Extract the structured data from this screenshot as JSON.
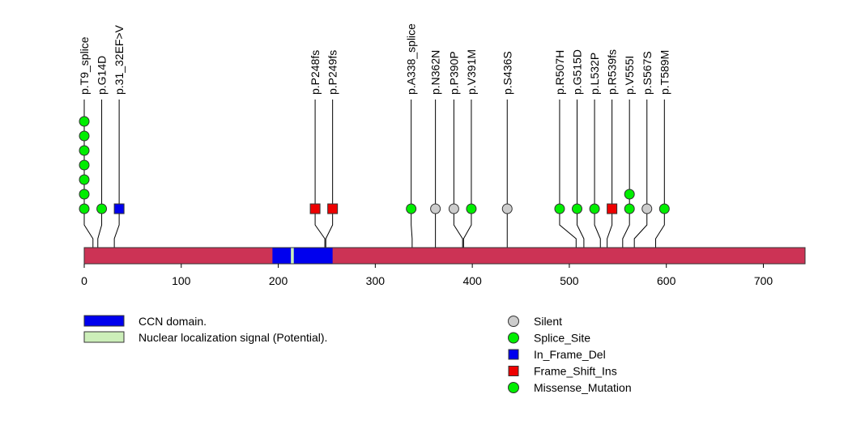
{
  "chart_data": {
    "type": "lollipop",
    "title": "",
    "protein_length": 743,
    "axis": {
      "xlim": [
        0,
        743
      ],
      "ticks": [
        0,
        100,
        200,
        300,
        400,
        500,
        600,
        700
      ],
      "tick_labels": [
        "0",
        "100",
        "200",
        "300",
        "400",
        "500",
        "600",
        "700"
      ]
    },
    "domains": [
      {
        "name": "CCN domain.",
        "start": 194,
        "end": 256,
        "color": "#0000ee"
      },
      {
        "name": "Nuclear localization signal (Potential).",
        "start": 213,
        "end": 216,
        "color": "#cceeb9"
      }
    ],
    "backbone_color": "#cc3355",
    "mutations": [
      {
        "label": "p.T9_splice",
        "pos": 9,
        "display_pos": 0,
        "count": 7,
        "type": "Splice_Site"
      },
      {
        "label": "p.G14D",
        "pos": 14,
        "display_pos": 18,
        "count": 1,
        "type": "Missense_Mutation"
      },
      {
        "label": "p.31_32EF>V",
        "pos": 31,
        "display_pos": 36,
        "count": 1,
        "type": "In_Frame_Del"
      },
      {
        "label": "p.P248fs",
        "pos": 248,
        "display_pos": 238,
        "count": 1,
        "type": "Frame_Shift_Ins"
      },
      {
        "label": "p.P249fs",
        "pos": 249,
        "display_pos": 256,
        "count": 1,
        "type": "Frame_Shift_Ins"
      },
      {
        "label": "p.A338_splice",
        "pos": 338,
        "display_pos": 337,
        "count": 1,
        "type": "Splice_Site"
      },
      {
        "label": "p.N362N",
        "pos": 362,
        "display_pos": 362,
        "count": 1,
        "type": "Silent"
      },
      {
        "label": "p.P390P",
        "pos": 390,
        "display_pos": 381,
        "count": 1,
        "type": "Silent"
      },
      {
        "label": "p.V391M",
        "pos": 391,
        "display_pos": 399,
        "count": 1,
        "type": "Missense_Mutation"
      },
      {
        "label": "p.S436S",
        "pos": 436,
        "display_pos": 436,
        "count": 1,
        "type": "Silent"
      },
      {
        "label": "p.R507H",
        "pos": 507,
        "display_pos": 490,
        "count": 1,
        "type": "Missense_Mutation"
      },
      {
        "label": "p.G515D",
        "pos": 515,
        "display_pos": 508,
        "count": 1,
        "type": "Missense_Mutation"
      },
      {
        "label": "p.L532P",
        "pos": 532,
        "display_pos": 526,
        "count": 1,
        "type": "Missense_Mutation"
      },
      {
        "label": "p.R539fs",
        "pos": 539,
        "display_pos": 544,
        "count": 1,
        "type": "Frame_Shift_Ins"
      },
      {
        "label": "p.V555I",
        "pos": 555,
        "display_pos": 562,
        "count": 2,
        "type": "Missense_Mutation"
      },
      {
        "label": "p.S567S",
        "pos": 567,
        "display_pos": 580,
        "count": 1,
        "type": "Silent"
      },
      {
        "label": "p.T589M",
        "pos": 589,
        "display_pos": 598,
        "count": 1,
        "type": "Missense_Mutation"
      }
    ],
    "mutation_types": {
      "Silent": {
        "color": "#cccccc",
        "shape": "circle"
      },
      "Splice_Site": {
        "color": "#00ee00",
        "shape": "circle"
      },
      "In_Frame_Del": {
        "color": "#0000ee",
        "shape": "square"
      },
      "Frame_Shift_Ins": {
        "color": "#ee0000",
        "shape": "square"
      },
      "Missense_Mutation": {
        "color": "#00ee00",
        "shape": "circle"
      }
    },
    "legend": {
      "domains": [
        "CCN domain.",
        "Nuclear localization signal (Potential)."
      ],
      "mutation_types": [
        "Silent",
        "Splice_Site",
        "In_Frame_Del",
        "Frame_Shift_Ins",
        "Missense_Mutation"
      ]
    }
  }
}
